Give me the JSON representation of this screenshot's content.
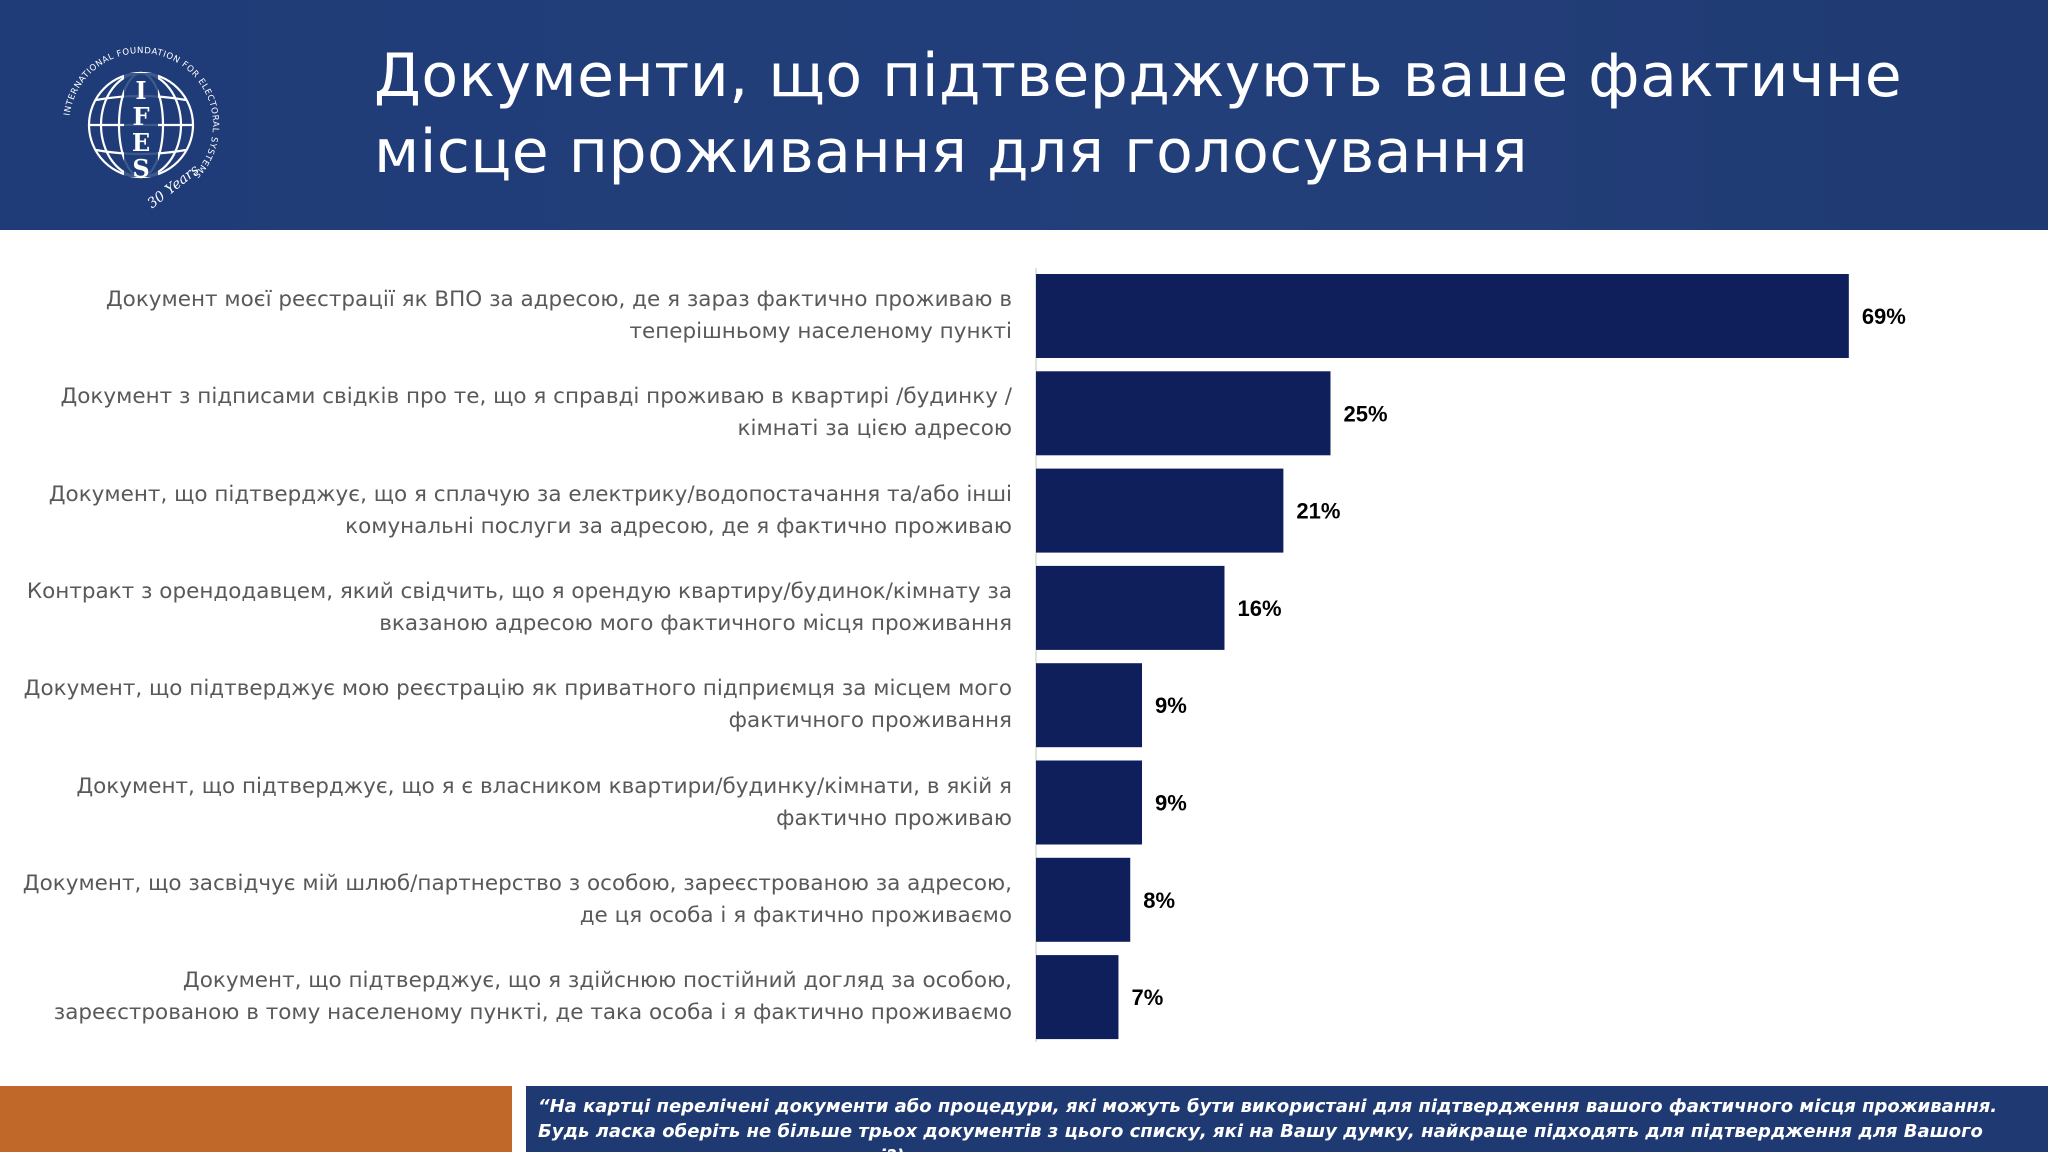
{
  "header": {
    "title_line1": "Документи, що підтверджують ваше фактичне",
    "title_line2": "місце проживання для голосування",
    "logo": {
      "icon": "ifes-globe-logo",
      "text_ring": "INTERNATIONAL FOUNDATION FOR ELECTORAL SYSTEMS",
      "letters": [
        "I",
        "F",
        "E",
        "S"
      ],
      "anniversary": "30 Years"
    }
  },
  "colors": {
    "header_bg": "#1f3c78",
    "bar": "#0e1f5c",
    "footer_orange": "#c0672a",
    "footer_blue": "#1f3a72",
    "label_text": "#595959"
  },
  "chart_data": {
    "type": "bar",
    "orientation": "horizontal",
    "categories": [
      "Документ моєї реєстрації як ВПО за адресою, де я зараз фактично проживаю в теперішньому населеному пункті",
      "Документ з підписами свідків про те, що я справді проживаю в квартирі /будинку / кімнаті за цією адресою",
      "Документ, що підтверджує, що я сплачую за електрику/водопостачання та/або інші комунальні послуги за адресою, де я фактично проживаю",
      "Контракт з орендодавцем, який свідчить, що я орендую квартиру/будинок/кімнату за вказаною адресою мого фактичного місця проживання",
      "Документ, що підтверджує мою реєстрацію як приватного підприємця за місцем мого фактичного проживання",
      "Документ, що підтверджує, що я є власником квартири/будинку/кімнати, в якій я фактично проживаю",
      "Документ, що засвідчує мій шлюб/партнерство з особою, зареєстрованою за адресою, де ця особа і я фактично проживаємо",
      "Документ, що підтверджує, що я здійснюю постійний догляд за особою, зареєстрованою в тому населеному пункті, де така особа і я фактично проживаємо"
    ],
    "category_lines": [
      [
        "Документ моєї реєстрації як ВПО за адресою, де я зараз фактично проживаю в",
        "теперішньому населеному пункті"
      ],
      [
        "Документ з підписами свідків про те, що я справді проживаю в квартирі /будинку /",
        "кімнаті за цією адресою"
      ],
      [
        "Документ, що підтверджує, що я сплачую за електрику/водопостачання та/або інші",
        "комунальні послуги за адресою, де я фактично проживаю"
      ],
      [
        "Контракт з орендодавцем, який свідчить, що я орендую квартиру/будинок/кімнату за",
        "вказаною адресою мого фактичного місця проживання"
      ],
      [
        "Документ, що підтверджує мою реєстрацію як приватного підприємця за місцем мого",
        "фактичного проживання"
      ],
      [
        "Документ, що підтверджує, що я є власником квартири/будинку/кімнати, в якій я",
        "фактично проживаю"
      ],
      [
        "Документ, що засвідчує мій шлюб/партнерство з особою, зареєстрованою за адресою,",
        "де ця особа і я фактично проживаємо"
      ],
      [
        "Документ, що підтверджує, що я здійснюю постійний догляд за особою,",
        "зареєстрованою в тому населеному пункті, де така особа і я фактично проживаємо"
      ]
    ],
    "values": [
      69,
      25,
      21,
      16,
      9,
      9,
      8,
      7
    ],
    "data_labels": [
      "69%",
      "25%",
      "21%",
      "16%",
      "9%",
      "9%",
      "8%",
      "7%"
    ],
    "unit": "%",
    "xlim": [
      0,
      100
    ],
    "grid": false,
    "legend": "none"
  },
  "footer": {
    "question": "“На картці перелічені документи або процедури, які можуть бути використані для підтвердження вашого фактичного місця проживання. Будь ласка оберіть не більше трьох документів з цього списку, які на Вашу думку, найкраще підходять для підтвердження для Вашого проживання в населеному пункті?)"
  }
}
